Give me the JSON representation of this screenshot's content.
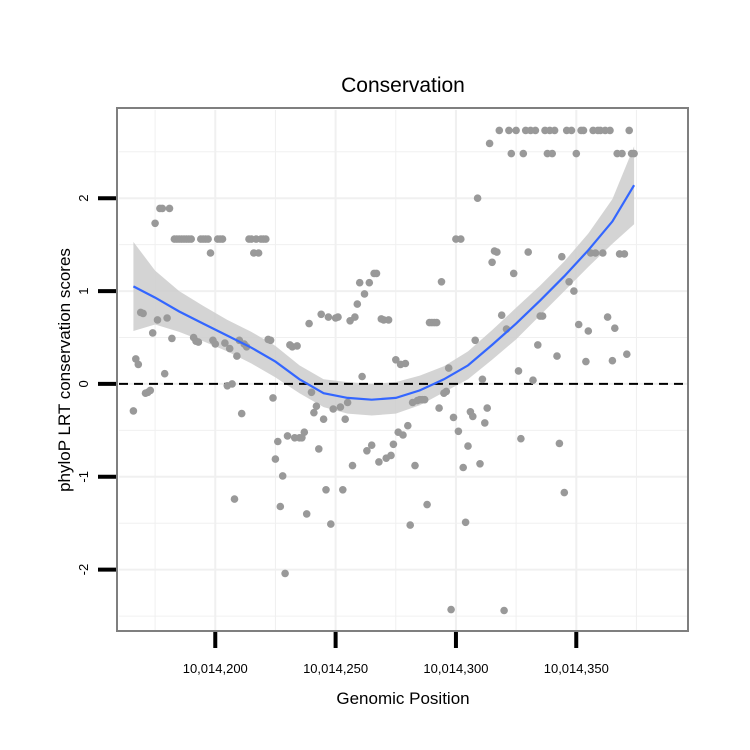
{
  "chart_data": {
    "type": "scatter",
    "title": "Conservation",
    "xlabel": "Genomic Position",
    "ylabel": "phyloP LRT conservation scores",
    "xlim": [
      10014160,
      10014396
    ],
    "ylim": [
      -2.65,
      2.95
    ],
    "x_ticks": [
      10014200,
      10014250,
      10014300,
      10014350
    ],
    "x_tick_labels": [
      "10,014,200",
      "10,014,250",
      "10,014,300",
      "10,014,350"
    ],
    "y_ticks": [
      -2,
      -1,
      0,
      1,
      2
    ],
    "y_tick_labels": [
      "-2",
      "-1",
      "0",
      "1",
      "2"
    ],
    "grid": true,
    "reference_line": {
      "y": 0,
      "style": "dashed"
    },
    "colors": {
      "points": "#999999",
      "smooth_line": "#3366FF",
      "confidence_band": "#cccccc",
      "panel_background": "#ffffff",
      "grid": "#f0f0f0",
      "frame": "#7f7f7f"
    },
    "series": [
      {
        "name": "phyloP scores",
        "kind": "points",
        "points": [
          [
            10014166,
            -0.29
          ],
          [
            10014167,
            0.27
          ],
          [
            10014168,
            0.21
          ],
          [
            10014169,
            0.77
          ],
          [
            10014170,
            0.76
          ],
          [
            10014171,
            -0.1
          ],
          [
            10014172,
            -0.09
          ],
          [
            10014173,
            -0.07
          ],
          [
            10014174,
            0.55
          ],
          [
            10014175,
            1.73
          ],
          [
            10014176,
            0.69
          ],
          [
            10014177,
            1.89
          ],
          [
            10014178,
            1.89
          ],
          [
            10014179,
            0.11
          ],
          [
            10014180,
            0.71
          ],
          [
            10014181,
            1.89
          ],
          [
            10014182,
            0.49
          ],
          [
            10014183,
            1.56
          ],
          [
            10014184,
            1.56
          ],
          [
            10014185,
            1.56
          ],
          [
            10014186,
            1.56
          ],
          [
            10014187,
            1.56
          ],
          [
            10014188,
            1.56
          ],
          [
            10014189,
            1.56
          ],
          [
            10014190,
            1.56
          ],
          [
            10014191,
            0.5
          ],
          [
            10014192,
            0.46
          ],
          [
            10014193,
            0.45
          ],
          [
            10014194,
            1.56
          ],
          [
            10014195,
            1.56
          ],
          [
            10014196,
            1.56
          ],
          [
            10014197,
            1.56
          ],
          [
            10014198,
            1.41
          ],
          [
            10014199,
            0.47
          ],
          [
            10014200,
            0.43
          ],
          [
            10014201,
            1.56
          ],
          [
            10014202,
            1.56
          ],
          [
            10014203,
            1.56
          ],
          [
            10014204,
            0.44
          ],
          [
            10014205,
            -0.02
          ],
          [
            10014206,
            0.38
          ],
          [
            10014207,
            0.0
          ],
          [
            10014208,
            -1.24
          ],
          [
            10014209,
            0.3
          ],
          [
            10014210,
            0.47
          ],
          [
            10014211,
            -0.32
          ],
          [
            10014212,
            0.43
          ],
          [
            10014213,
            0.4
          ],
          [
            10014214,
            1.56
          ],
          [
            10014215,
            1.56
          ],
          [
            10014216,
            1.41
          ],
          [
            10014217,
            1.56
          ],
          [
            10014218,
            1.41
          ],
          [
            10014219,
            1.56
          ],
          [
            10014220,
            1.56
          ],
          [
            10014221,
            1.56
          ],
          [
            10014222,
            0.48
          ],
          [
            10014223,
            0.47
          ],
          [
            10014224,
            -0.15
          ],
          [
            10014225,
            -0.81
          ],
          [
            10014226,
            -0.62
          ],
          [
            10014227,
            -1.32
          ],
          [
            10014228,
            -0.99
          ],
          [
            10014229,
            -2.04
          ],
          [
            10014230,
            -0.56
          ],
          [
            10014231,
            0.42
          ],
          [
            10014232,
            0.4
          ],
          [
            10014233,
            -0.58
          ],
          [
            10014234,
            0.41
          ],
          [
            10014235,
            -0.58
          ],
          [
            10014236,
            -0.58
          ],
          [
            10014237,
            -0.52
          ],
          [
            10014238,
            -1.4
          ],
          [
            10014239,
            0.65
          ],
          [
            10014240,
            -0.09
          ],
          [
            10014241,
            -0.31
          ],
          [
            10014242,
            -0.24
          ],
          [
            10014243,
            -0.7
          ],
          [
            10014244,
            0.75
          ],
          [
            10014245,
            -0.38
          ],
          [
            10014246,
            -1.14
          ],
          [
            10014247,
            0.72
          ],
          [
            10014248,
            -1.51
          ],
          [
            10014249,
            -0.27
          ],
          [
            10014250,
            0.71
          ],
          [
            10014251,
            0.72
          ],
          [
            10014252,
            -0.25
          ],
          [
            10014253,
            -1.14
          ],
          [
            10014254,
            -0.38
          ],
          [
            10014255,
            -0.2
          ],
          [
            10014256,
            0.68
          ],
          [
            10014257,
            -0.88
          ],
          [
            10014258,
            0.72
          ],
          [
            10014259,
            0.86
          ],
          [
            10014260,
            1.09
          ],
          [
            10014261,
            0.08
          ],
          [
            10014262,
            0.97
          ],
          [
            10014263,
            -0.72
          ],
          [
            10014264,
            1.09
          ],
          [
            10014265,
            -0.66
          ],
          [
            10014266,
            1.19
          ],
          [
            10014267,
            1.19
          ],
          [
            10014268,
            -0.84
          ],
          [
            10014269,
            0.7
          ],
          [
            10014270,
            0.69
          ],
          [
            10014271,
            -0.8
          ],
          [
            10014272,
            0.69
          ],
          [
            10014273,
            -0.77
          ],
          [
            10014274,
            -0.65
          ],
          [
            10014275,
            0.26
          ],
          [
            10014276,
            -0.52
          ],
          [
            10014277,
            0.21
          ],
          [
            10014278,
            -0.55
          ],
          [
            10014279,
            0.22
          ],
          [
            10014280,
            -0.45
          ],
          [
            10014281,
            -1.52
          ],
          [
            10014282,
            -0.2
          ],
          [
            10014283,
            -0.88
          ],
          [
            10014284,
            -0.18
          ],
          [
            10014285,
            -0.17
          ],
          [
            10014286,
            -0.17
          ],
          [
            10014287,
            -0.17
          ],
          [
            10014288,
            -1.3
          ],
          [
            10014289,
            0.66
          ],
          [
            10014290,
            0.66
          ],
          [
            10014291,
            0.66
          ],
          [
            10014292,
            0.66
          ],
          [
            10014293,
            -0.26
          ],
          [
            10014294,
            1.1
          ],
          [
            10014295,
            -0.1
          ],
          [
            10014296,
            -0.08
          ],
          [
            10014297,
            0.17
          ],
          [
            10014298,
            -2.43
          ],
          [
            10014299,
            -0.36
          ],
          [
            10014300,
            1.56
          ],
          [
            10014301,
            -0.51
          ],
          [
            10014302,
            1.56
          ],
          [
            10014303,
            -0.9
          ],
          [
            10014304,
            -1.49
          ],
          [
            10014305,
            -0.67
          ],
          [
            10014306,
            -0.3
          ],
          [
            10014307,
            -0.35
          ],
          [
            10014308,
            0.47
          ],
          [
            10014309,
            2.0
          ],
          [
            10014310,
            -0.86
          ],
          [
            10014311,
            0.05
          ],
          [
            10014312,
            -0.42
          ],
          [
            10014313,
            -0.26
          ],
          [
            10014314,
            2.59
          ],
          [
            10014315,
            1.31
          ],
          [
            10014316,
            1.43
          ],
          [
            10014317,
            1.42
          ],
          [
            10014318,
            2.73
          ],
          [
            10014319,
            0.74
          ],
          [
            10014320,
            -2.44
          ],
          [
            10014321,
            0.59
          ],
          [
            10014322,
            2.73
          ],
          [
            10014323,
            2.48
          ],
          [
            10014324,
            1.19
          ],
          [
            10014325,
            2.73
          ],
          [
            10014326,
            0.14
          ],
          [
            10014327,
            -0.59
          ],
          [
            10014328,
            2.48
          ],
          [
            10014329,
            2.73
          ],
          [
            10014330,
            1.42
          ],
          [
            10014331,
            2.73
          ],
          [
            10014332,
            0.04
          ],
          [
            10014333,
            2.73
          ],
          [
            10014334,
            0.42
          ],
          [
            10014335,
            0.73
          ],
          [
            10014336,
            0.73
          ],
          [
            10014337,
            2.73
          ],
          [
            10014338,
            2.48
          ],
          [
            10014339,
            2.73
          ],
          [
            10014340,
            2.48
          ],
          [
            10014341,
            2.73
          ],
          [
            10014342,
            0.3
          ],
          [
            10014343,
            -0.64
          ],
          [
            10014344,
            1.37
          ],
          [
            10014345,
            -1.17
          ],
          [
            10014346,
            2.73
          ],
          [
            10014347,
            1.1
          ],
          [
            10014348,
            2.73
          ],
          [
            10014349,
            1.0
          ],
          [
            10014350,
            2.48
          ],
          [
            10014351,
            0.64
          ],
          [
            10014352,
            2.73
          ],
          [
            10014353,
            2.73
          ],
          [
            10014354,
            0.24
          ],
          [
            10014355,
            0.57
          ],
          [
            10014356,
            1.41
          ],
          [
            10014357,
            2.73
          ],
          [
            10014358,
            1.41
          ],
          [
            10014359,
            2.73
          ],
          [
            10014360,
            2.73
          ],
          [
            10014361,
            1.41
          ],
          [
            10014362,
            2.73
          ],
          [
            10014363,
            0.72
          ],
          [
            10014364,
            2.73
          ],
          [
            10014365,
            0.25
          ],
          [
            10014366,
            0.6
          ],
          [
            10014367,
            2.48
          ],
          [
            10014368,
            1.4
          ],
          [
            10014369,
            2.48
          ],
          [
            10014370,
            1.4
          ],
          [
            10014371,
            0.32
          ],
          [
            10014372,
            2.73
          ],
          [
            10014373,
            2.48
          ],
          [
            10014374,
            2.48
          ]
        ]
      },
      {
        "name": "loess smooth",
        "kind": "line",
        "x": [
          10014166,
          10014175,
          10014185,
          10014195,
          10014205,
          10014215,
          10014225,
          10014235,
          10014245,
          10014255,
          10014265,
          10014275,
          10014285,
          10014295,
          10014305,
          10014315,
          10014325,
          10014335,
          10014345,
          10014355,
          10014365,
          10014374
        ],
        "y": [
          1.05,
          0.93,
          0.78,
          0.65,
          0.52,
          0.39,
          0.24,
          0.05,
          -0.1,
          -0.15,
          -0.17,
          -0.15,
          -0.07,
          0.05,
          0.2,
          0.42,
          0.65,
          0.9,
          1.16,
          1.44,
          1.75,
          2.14
        ],
        "ci_lower": [
          0.57,
          0.64,
          0.56,
          0.46,
          0.35,
          0.22,
          0.07,
          -0.1,
          -0.25,
          -0.32,
          -0.34,
          -0.32,
          -0.23,
          -0.09,
          0.05,
          0.26,
          0.48,
          0.74,
          1.0,
          1.26,
          1.51,
          1.72
        ],
        "ci_upper": [
          1.53,
          1.22,
          1.0,
          0.84,
          0.69,
          0.56,
          0.41,
          0.2,
          0.05,
          0.02,
          0.0,
          0.02,
          0.09,
          0.19,
          0.35,
          0.58,
          0.82,
          1.06,
          1.32,
          1.62,
          1.99,
          2.56
        ]
      }
    ]
  }
}
